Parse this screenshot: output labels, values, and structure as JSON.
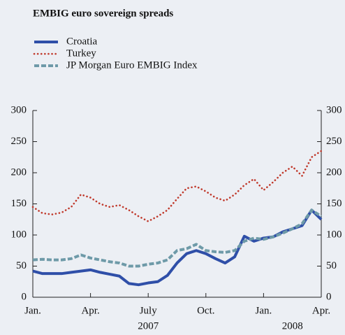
{
  "chart_data": {
    "type": "line",
    "title": "EMBIG euro sovereign spreads",
    "x": [
      0,
      0.5,
      1,
      1.5,
      2,
      2.5,
      3,
      3.5,
      4,
      4.5,
      5,
      5.5,
      6,
      6.5,
      7,
      7.5,
      8,
      8.5,
      9,
      9.5,
      10,
      10.5,
      11,
      11.5,
      12,
      12.5,
      13,
      13.5,
      14,
      14.5,
      15
    ],
    "series": [
      {
        "name": "Croatia",
        "color": "#2f4fa8",
        "style": "solid",
        "values": [
          42,
          38,
          38,
          38,
          40,
          42,
          44,
          40,
          37,
          34,
          22,
          20,
          23,
          25,
          35,
          55,
          70,
          75,
          70,
          62,
          55,
          65,
          98,
          90,
          95,
          97,
          105,
          110,
          115,
          140,
          125
        ]
      },
      {
        "name": "Turkey",
        "color": "#c0392b",
        "style": "dotted",
        "values": [
          145,
          135,
          133,
          136,
          145,
          165,
          160,
          150,
          145,
          148,
          140,
          130,
          122,
          130,
          140,
          158,
          175,
          178,
          170,
          160,
          155,
          165,
          180,
          190,
          172,
          185,
          200,
          210,
          195,
          225,
          235
        ]
      },
      {
        "name": "JP Morgan Euro EMBIG Index",
        "color": "#6e9aa8",
        "style": "dashed",
        "values": [
          60,
          61,
          60,
          60,
          62,
          68,
          63,
          60,
          57,
          55,
          50,
          50,
          53,
          55,
          60,
          75,
          78,
          85,
          75,
          73,
          72,
          75,
          90,
          95,
          93,
          97,
          103,
          110,
          118,
          140,
          130
        ]
      }
    ],
    "xlim": [
      0,
      15
    ],
    "xticks": [
      {
        "value": 0,
        "label": "Jan."
      },
      {
        "value": 3,
        "label": "Apr."
      },
      {
        "value": 6,
        "label": "July"
      },
      {
        "value": 9,
        "label": "Oct."
      },
      {
        "value": 12,
        "label": "Jan."
      },
      {
        "value": 15,
        "label": "Apr."
      }
    ],
    "years": [
      {
        "value": 6,
        "label": "2007"
      },
      {
        "value": 13.5,
        "label": "2008"
      }
    ],
    "ylim": [
      0,
      300
    ],
    "yticks": [
      0,
      50,
      100,
      150,
      200,
      250,
      300
    ],
    "y2lim": [
      0,
      300
    ],
    "y2ticks": [
      0,
      50,
      100,
      150,
      200,
      250,
      300
    ]
  }
}
